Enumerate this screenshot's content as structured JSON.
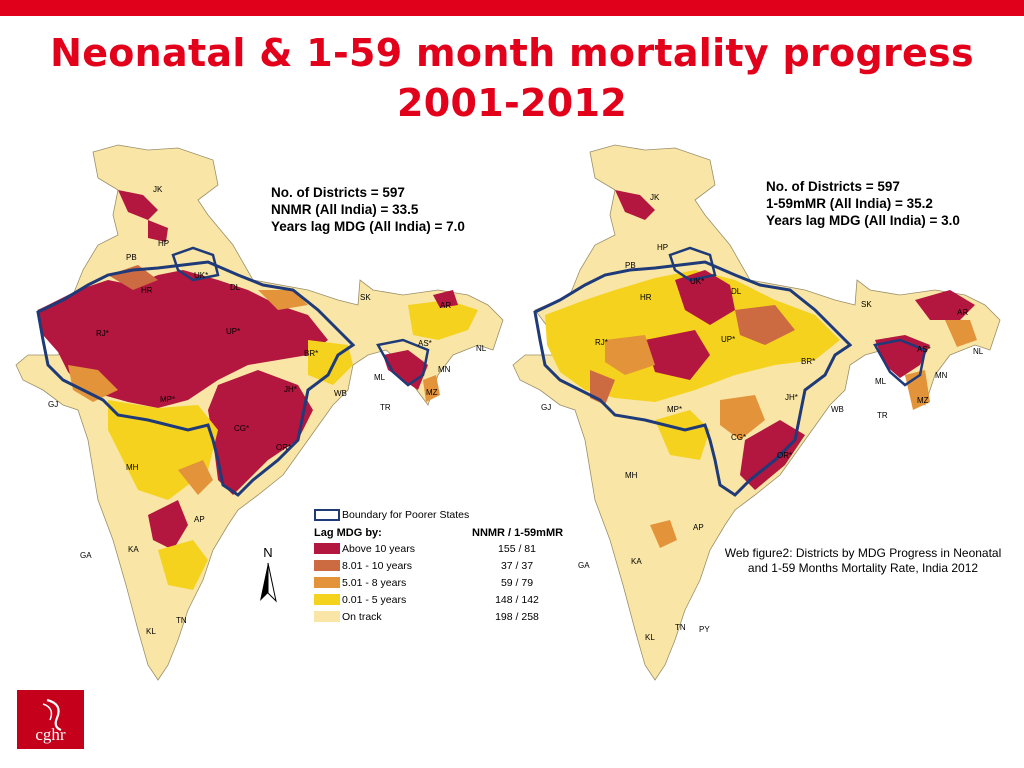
{
  "title": {
    "line1": "Neonatal & 1-59 month mortality progress",
    "line2": "2001-2012"
  },
  "left_map": {
    "stats": [
      "No. of Districts = 597",
      "NNMR (All India) = 33.5",
      "Years lag MDG (All India) = 7.0"
    ],
    "labels": [
      "JK",
      "HP",
      "PB",
      "UK*",
      "HR",
      "DL",
      "RJ*",
      "UP*",
      "SK",
      "AR",
      "AS*",
      "NL",
      "ML",
      "MN",
      "TR",
      "MZ",
      "BR*",
      "JH*",
      "WB",
      "GJ",
      "MP*",
      "CG*",
      "OR*",
      "MH",
      "AP",
      "GA",
      "KA",
      "KL",
      "TN"
    ],
    "north": "N"
  },
  "right_map": {
    "stats": [
      "No. of Districts = 597",
      "1-59mMR (All India) = 35.2",
      "Years lag MDG (All India) = 3.0"
    ],
    "labels": [
      "JK",
      "HP",
      "PB",
      "UK*",
      "HR",
      "DL",
      "RJ*",
      "UP*",
      "SK",
      "AR",
      "AS*",
      "NL",
      "ML",
      "MN",
      "TR",
      "MZ",
      "BR*",
      "JH*",
      "WB",
      "GJ",
      "MP*",
      "CG*",
      "OR*",
      "MH",
      "AP",
      "GA",
      "KA",
      "KL",
      "TN",
      "PY"
    ]
  },
  "legend": {
    "boundary": "Boundary for Poorer States",
    "header_left": "Lag MDG by:",
    "header_right": "NNMR / 1-59mMR",
    "items": [
      {
        "label": "Above 10 years",
        "value": "155 / 81",
        "color": "#b3163f"
      },
      {
        "label": "8.01 - 10 years",
        "value": "37 / 37",
        "color": "#cc6a42"
      },
      {
        "label": "5.01 - 8 years",
        "value": "59 / 79",
        "color": "#e3933a"
      },
      {
        "label": "0.01 - 5 years",
        "value": "148 / 142",
        "color": "#f4d21e"
      },
      {
        "label": "On track",
        "value": "198 / 258",
        "color": "#f9e6a6"
      }
    ]
  },
  "caption": {
    "line1": "Web figure2: Districts by MDG Progress in Neonatal",
    "line2": "and 1-59 Months Mortality Rate, India 2012"
  },
  "logo": "cghr",
  "colors": {
    "accent": "#e3001b",
    "boundary": "#1f3a78"
  }
}
